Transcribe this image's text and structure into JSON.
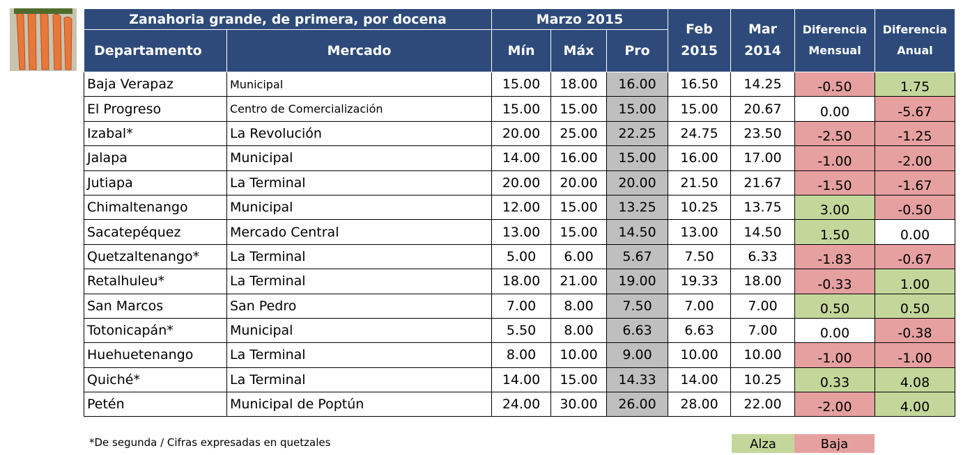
{
  "header": {
    "title": "Zanahoria grande, de primera, por docena",
    "period": "Marzo 2015",
    "columns": [
      "Departamento",
      "Mercado",
      "Mín",
      "Máx",
      "Pro",
      "Feb 2015",
      "Mar 2014",
      "Diferencia Mensual",
      "Diferencia Anual"
    ]
  },
  "table": {
    "rows": [
      [
        "Baja Verapaz",
        "Municipal",
        "15.00",
        "18.00",
        "16.00",
        "16.50",
        "14.25",
        "-0.50",
        "1.75"
      ],
      [
        "El Progreso",
        "Centro de Comercialización",
        "15.00",
        "15.00",
        "15.00",
        "15.00",
        "20.67",
        "0.00",
        "-5.67"
      ],
      [
        "Izabal*",
        "La Revolución",
        "20.00",
        "25.00",
        "22.25",
        "24.75",
        "23.50",
        "-2.50",
        "-1.25"
      ],
      [
        "Jalapa",
        "Municipal",
        "14.00",
        "16.00",
        "15.00",
        "16.00",
        "17.00",
        "-1.00",
        "-2.00"
      ],
      [
        "Jutiapa",
        "La Terminal",
        "20.00",
        "20.00",
        "20.00",
        "21.50",
        "21.67",
        "-1.50",
        "-1.67"
      ],
      [
        "Chimaltenango",
        "Municipal",
        "12.00",
        "15.00",
        "13.25",
        "10.25",
        "13.75",
        "3.00",
        "-0.50"
      ],
      [
        "Sacatepéquez",
        "Mercado Central",
        "13.00",
        "15.00",
        "14.50",
        "13.00",
        "14.50",
        "1.50",
        "0.00"
      ],
      [
        "Quetzaltenango*",
        "La Terminal",
        "5.00",
        "6.00",
        "5.67",
        "7.50",
        "6.33",
        "-1.83",
        "-0.67"
      ],
      [
        "Retalhuleu*",
        "La Terminal",
        "18.00",
        "21.00",
        "19.00",
        "19.33",
        "18.00",
        "-0.33",
        "1.00"
      ],
      [
        "San Marcos",
        "San Pedro",
        "7.00",
        "8.00",
        "7.50",
        "7.00",
        "7.00",
        "0.50",
        "0.50"
      ],
      [
        "Totonicapán*",
        "Municipal",
        "5.50",
        "8.00",
        "6.63",
        "6.63",
        "7.00",
        "0.00",
        "-0.38"
      ],
      [
        "Huehuetenango",
        "La Terminal",
        "8.00",
        "10.00",
        "9.00",
        "10.00",
        "10.00",
        "-1.00",
        "-1.00"
      ],
      [
        "Quiché*",
        "La Terminal",
        "14.00",
        "15.00",
        "14.33",
        "14.00",
        "10.25",
        "0.33",
        "4.08"
      ],
      [
        "Petén",
        "Municipal de Poptún",
        "24.00",
        "30.00",
        "26.00",
        "28.00",
        "22.00",
        "-2.00",
        "4.00"
      ]
    ]
  },
  "footnote": "*De segunda / Cifras expresadas en quetzales",
  "legend": [
    "Alza",
    "Baja"
  ]
}
